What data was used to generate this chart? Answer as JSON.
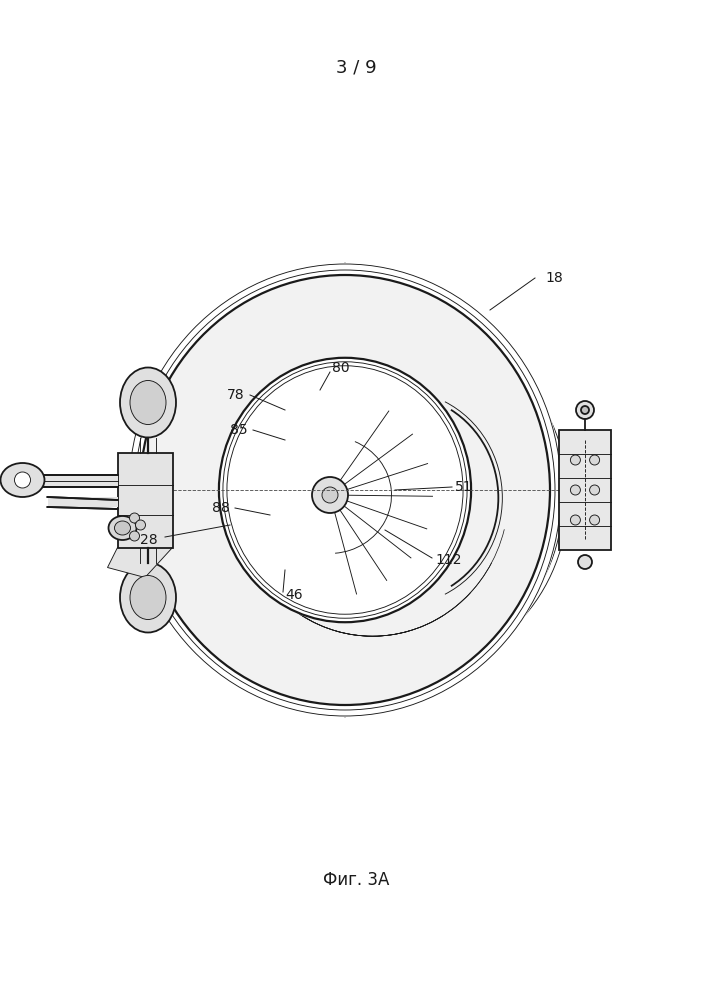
{
  "page_label": "3 / 9",
  "fig_label": "Фиг. 3А",
  "background_color": "#ffffff",
  "line_color": "#1a1a1a",
  "lw_main": 1.3,
  "lw_thin": 0.65,
  "lw_thick": 1.6
}
